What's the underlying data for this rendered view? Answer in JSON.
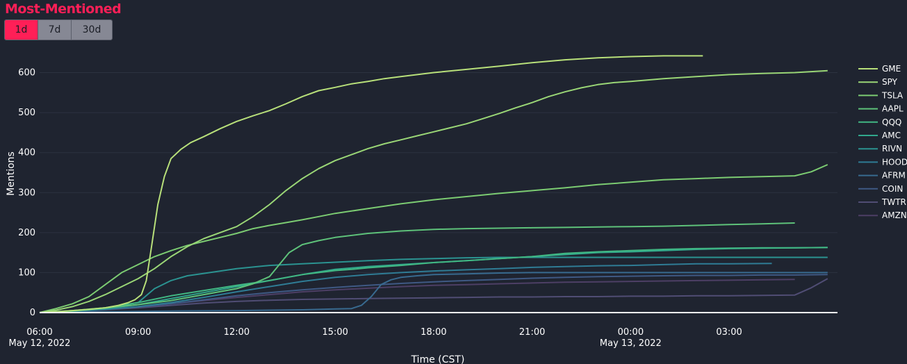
{
  "title": "Most-Mentioned",
  "range_buttons": [
    {
      "label": "1d",
      "active": true
    },
    {
      "label": "7d",
      "active": false
    },
    {
      "label": "30d",
      "active": false
    }
  ],
  "chart_data": {
    "type": "line",
    "xlabel": "Time (CST)",
    "ylabel": "Mentions",
    "xlim": [
      0,
      24.3
    ],
    "ylim": [
      0,
      660
    ],
    "x_units": "hours since May 12, 2022 06:00 CST",
    "x_ticks": [
      {
        "x": 0,
        "label": "06:00",
        "sublabel": "May 12, 2022"
      },
      {
        "x": 3,
        "label": "09:00",
        "sublabel": ""
      },
      {
        "x": 6,
        "label": "12:00",
        "sublabel": ""
      },
      {
        "x": 9,
        "label": "15:00",
        "sublabel": ""
      },
      {
        "x": 12,
        "label": "18:00",
        "sublabel": ""
      },
      {
        "x": 15,
        "label": "21:00",
        "sublabel": ""
      },
      {
        "x": 18,
        "label": "00:00",
        "sublabel": "May 13, 2022"
      },
      {
        "x": 21,
        "label": "03:00",
        "sublabel": ""
      }
    ],
    "y_ticks": [
      0,
      100,
      200,
      300,
      400,
      500,
      600
    ],
    "series": [
      {
        "name": "GME",
        "color": "#b8e07a",
        "x": [
          0,
          0.5,
          1,
          1.5,
          2,
          2.4,
          2.7,
          2.9,
          3.1,
          3.25,
          3.4,
          3.6,
          3.8,
          4.0,
          4.3,
          4.6,
          5,
          5.5,
          6,
          6.5,
          7,
          7.5,
          8,
          8.5,
          9,
          9.5,
          10,
          10.5,
          11,
          11.5,
          12,
          13,
          14,
          15,
          16,
          17,
          18,
          19,
          20.2
        ],
        "y": [
          0,
          2,
          5,
          8,
          12,
          18,
          25,
          32,
          45,
          80,
          160,
          270,
          340,
          385,
          408,
          425,
          440,
          460,
          478,
          492,
          505,
          522,
          540,
          555,
          563,
          572,
          578,
          585,
          590,
          595,
          600,
          608,
          616,
          625,
          632,
          637,
          640,
          642,
          642
        ]
      },
      {
        "name": "SPY",
        "color": "#9ad676",
        "x": [
          0,
          0.5,
          1,
          1.5,
          2,
          2.5,
          3,
          3.5,
          4,
          4.5,
          5,
          5.5,
          6,
          6.5,
          7,
          7.5,
          8,
          8.5,
          9,
          9.5,
          10,
          10.5,
          11,
          11.5,
          12,
          12.5,
          13,
          13.5,
          14,
          14.5,
          15,
          15.5,
          16,
          16.5,
          17,
          17.5,
          18,
          19,
          20,
          21,
          22,
          23,
          24
        ],
        "y": [
          0,
          6,
          15,
          28,
          45,
          65,
          85,
          110,
          140,
          165,
          185,
          200,
          215,
          240,
          270,
          305,
          335,
          360,
          380,
          395,
          410,
          422,
          432,
          442,
          452,
          462,
          472,
          485,
          498,
          512,
          525,
          540,
          552,
          562,
          570,
          575,
          578,
          585,
          590,
          595,
          598,
          600,
          605
        ]
      },
      {
        "name": "TSLA",
        "color": "#7ccc72",
        "x": [
          0,
          0.5,
          1,
          1.5,
          2,
          2.5,
          3,
          3.5,
          4,
          4.5,
          5,
          5.5,
          6,
          6.5,
          7,
          7.5,
          8,
          8.5,
          9,
          10,
          11,
          12,
          13,
          14,
          15,
          16,
          17,
          18,
          19,
          20,
          21,
          22,
          23,
          23.5,
          24
        ],
        "y": [
          0,
          10,
          22,
          40,
          70,
          100,
          120,
          140,
          155,
          168,
          178,
          188,
          198,
          210,
          218,
          225,
          232,
          240,
          248,
          260,
          272,
          282,
          290,
          298,
          305,
          312,
          320,
          326,
          332,
          335,
          338,
          340,
          342,
          352,
          370
        ]
      },
      {
        "name": "AAPL",
        "color": "#5ec27a",
        "x": [
          0,
          1,
          2,
          3,
          4,
          5,
          6,
          6.5,
          7,
          7.3,
          7.6,
          8,
          8.5,
          9,
          10,
          11,
          12,
          13,
          14,
          15,
          16,
          17,
          18,
          19,
          20,
          21,
          22,
          23
        ],
        "y": [
          0,
          5,
          12,
          20,
          30,
          45,
          60,
          72,
          90,
          120,
          150,
          170,
          180,
          188,
          198,
          204,
          208,
          210,
          211,
          212,
          213,
          214,
          215,
          216,
          218,
          220,
          222,
          224
        ]
      },
      {
        "name": "QQQ",
        "color": "#41b783",
        "x": [
          0,
          1,
          2,
          3,
          4,
          5,
          6,
          7,
          8,
          9,
          9.5,
          10,
          11,
          12,
          13,
          14,
          15,
          16,
          17,
          18,
          19,
          20,
          21,
          22,
          23,
          24
        ],
        "y": [
          0,
          4,
          12,
          25,
          42,
          55,
          68,
          80,
          95,
          105,
          108,
          112,
          118,
          125,
          130,
          135,
          140,
          148,
          152,
          155,
          158,
          160,
          161,
          162,
          162,
          163
        ]
      },
      {
        "name": "AMC",
        "color": "#31a88c",
        "x": [
          0,
          1,
          2,
          3,
          4,
          5,
          6,
          7,
          8,
          9,
          10,
          11,
          12,
          13,
          14,
          15,
          16,
          17,
          18,
          19,
          20,
          21,
          22,
          23,
          24
        ],
        "y": [
          0,
          4,
          10,
          20,
          35,
          50,
          65,
          80,
          95,
          108,
          115,
          120,
          125,
          130,
          135,
          140,
          145,
          150,
          152,
          155,
          158,
          160,
          161,
          162,
          163
        ]
      },
      {
        "name": "RIVN",
        "color": "#2b9391",
        "x": [
          0,
          1,
          2,
          3,
          3.5,
          4,
          4.5,
          5,
          6,
          7,
          8,
          9,
          10,
          11,
          12,
          13,
          14,
          15,
          16,
          17,
          18,
          19,
          20,
          21,
          22,
          23,
          24
        ],
        "y": [
          0,
          5,
          12,
          25,
          60,
          80,
          92,
          98,
          110,
          118,
          122,
          126,
          130,
          133,
          135,
          137,
          138,
          138,
          138,
          138,
          138,
          138,
          138,
          138,
          138,
          138,
          138
        ]
      },
      {
        "name": "HOOD",
        "color": "#2f7c95",
        "x": [
          0,
          1,
          2,
          3,
          4,
          5,
          6,
          7,
          8,
          9,
          10,
          11,
          12,
          13,
          14,
          15,
          16,
          17,
          18,
          19,
          20,
          21,
          22.3
        ],
        "y": [
          0,
          3,
          8,
          15,
          25,
          38,
          52,
          65,
          78,
          88,
          95,
          100,
          104,
          107,
          110,
          113,
          115,
          117,
          118,
          120,
          122,
          122,
          123
        ]
      },
      {
        "name": "AFRM",
        "color": "#386a8f",
        "x": [
          0,
          2,
          4,
          6,
          8,
          9,
          9.5,
          9.8,
          10.1,
          10.4,
          10.7,
          11,
          11.5,
          12,
          13,
          14,
          15,
          16,
          17,
          18,
          19,
          20,
          21,
          22,
          23,
          24
        ],
        "y": [
          0,
          2,
          4,
          5,
          7,
          9,
          10,
          18,
          40,
          70,
          82,
          88,
          92,
          95,
          97,
          99,
          100,
          100,
          100,
          100,
          100,
          100,
          100,
          100,
          100,
          100
        ]
      },
      {
        "name": "COIN",
        "color": "#3f5984",
        "x": [
          0,
          1,
          2,
          3,
          4,
          5,
          6,
          7,
          8,
          9,
          10,
          11,
          12,
          13,
          14,
          15,
          16,
          17,
          18,
          19,
          20,
          21,
          22,
          23,
          24
        ],
        "y": [
          0,
          3,
          8,
          14,
          22,
          32,
          42,
          50,
          57,
          63,
          68,
          73,
          77,
          80,
          83,
          86,
          88,
          90,
          91,
          92,
          93,
          93,
          94,
          94,
          95
        ]
      },
      {
        "name": "TWTR",
        "color": "#504d74",
        "x": [
          0,
          1,
          2,
          3,
          4,
          5,
          6,
          7,
          8,
          9,
          10,
          11,
          12,
          13,
          14,
          15,
          16,
          17,
          18,
          19,
          20,
          21,
          22,
          23,
          23.5,
          24
        ],
        "y": [
          0,
          3,
          7,
          12,
          18,
          24,
          28,
          31,
          33,
          34,
          35,
          36,
          37,
          38,
          39,
          39,
          40,
          40,
          41,
          41,
          42,
          42,
          43,
          44,
          62,
          85
        ]
      },
      {
        "name": "AMZN",
        "color": "#4d3f65",
        "x": [
          0,
          1,
          2,
          3,
          4,
          5,
          6,
          7,
          8,
          9,
          10,
          11,
          12,
          13,
          14,
          15,
          16,
          17,
          18,
          19,
          20,
          21,
          22,
          23
        ],
        "y": [
          0,
          3,
          8,
          15,
          22,
          30,
          38,
          45,
          52,
          57,
          61,
          65,
          68,
          70,
          72,
          74,
          76,
          77,
          78,
          79,
          80,
          81,
          82,
          83
        ]
      }
    ]
  }
}
